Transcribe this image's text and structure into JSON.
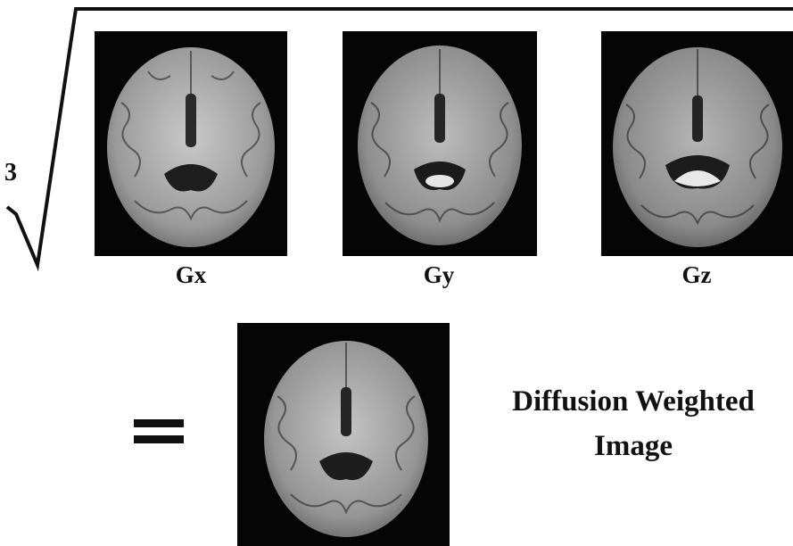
{
  "root_index": "3",
  "panels": [
    {
      "label": "Gx"
    },
    {
      "label": "Gy"
    },
    {
      "label": "Gz"
    }
  ],
  "result": {
    "line1": "Diffusion Weighted",
    "line2": "Image"
  },
  "colors": {
    "ink": "#111111",
    "background": "#ffffff",
    "panel_background": "#050505"
  }
}
